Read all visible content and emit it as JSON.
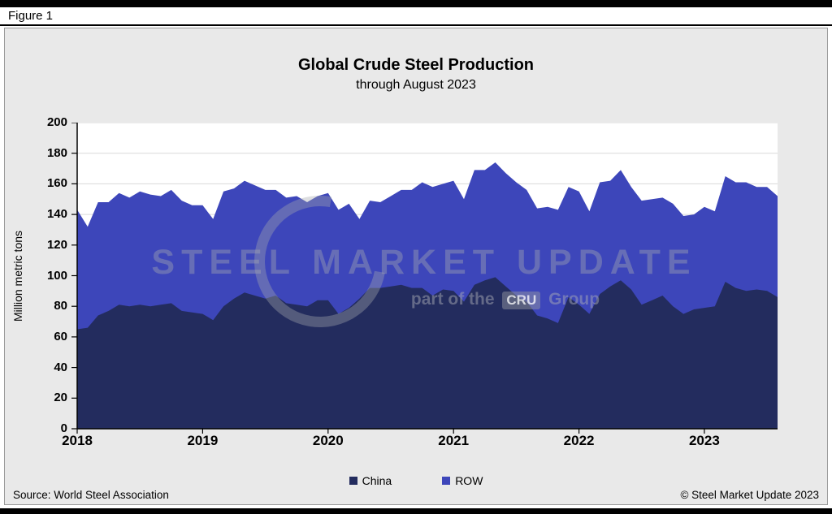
{
  "figure_label": "Figure 1",
  "chart": {
    "title": "Global Crude Steel Production",
    "subtitle": "through August 2023",
    "y_axis_label": "Million metric tons"
  },
  "footer": {
    "source": "Source: World Steel Association",
    "copyright": "© Steel Market Update 2023"
  },
  "watermark": {
    "title": "STEEL MARKET UPDATE",
    "tagline_prefix": "part of the",
    "tagline_brand": "CRU",
    "tagline_suffix": "Group"
  },
  "chart_data": {
    "type": "area",
    "stacked": true,
    "title": "Global Crude Steel Production",
    "subtitle": "through August 2023",
    "ylabel": "Million metric tons",
    "ylim": [
      0,
      200
    ],
    "y_ticks": [
      0,
      20,
      40,
      60,
      80,
      100,
      120,
      140,
      160,
      180,
      200
    ],
    "x_start": "2018-01",
    "x_end": "2023-08",
    "x_tick_labels": [
      "2018",
      "2019",
      "2020",
      "2021",
      "2022",
      "2023"
    ],
    "x_tick_month_indices": [
      0,
      12,
      24,
      36,
      48,
      60
    ],
    "months_total": 68,
    "grid_color": "#d9d9d9",
    "plot_background": "#ffffff",
    "legend_position": "bottom",
    "series": [
      {
        "name": "China",
        "color": "#232c5e",
        "values": [
          65,
          66,
          74,
          77,
          81,
          80,
          81,
          80,
          81,
          82,
          77,
          76,
          75,
          71,
          80,
          85,
          89,
          87,
          85,
          87,
          82,
          81,
          80,
          84,
          84,
          75,
          79,
          85,
          92,
          92,
          93,
          94,
          92,
          92,
          87,
          91,
          90,
          83,
          94,
          97,
          99,
          93,
          87,
          83,
          74,
          72,
          69,
          86,
          81,
          75,
          88,
          93,
          97,
          91,
          81,
          84,
          87,
          80,
          75,
          78,
          79,
          80,
          96,
          92,
          90,
          91,
          90,
          86
        ]
      },
      {
        "name": "ROW",
        "color": "#3d46ba",
        "values": [
          78,
          66,
          74,
          71,
          73,
          71,
          74,
          73,
          71,
          74,
          72,
          70,
          71,
          66,
          75,
          72,
          73,
          72,
          71,
          69,
          69,
          71,
          68,
          68,
          70,
          68,
          68,
          52,
          57,
          56,
          59,
          62,
          64,
          69,
          71,
          69,
          72,
          67,
          75,
          72,
          75,
          74,
          74,
          73,
          70,
          73,
          74,
          72,
          74,
          67,
          73,
          69,
          72,
          67,
          68,
          66,
          64,
          67,
          64,
          62,
          66,
          62,
          69,
          69,
          71,
          67,
          68,
          66
        ]
      }
    ]
  }
}
